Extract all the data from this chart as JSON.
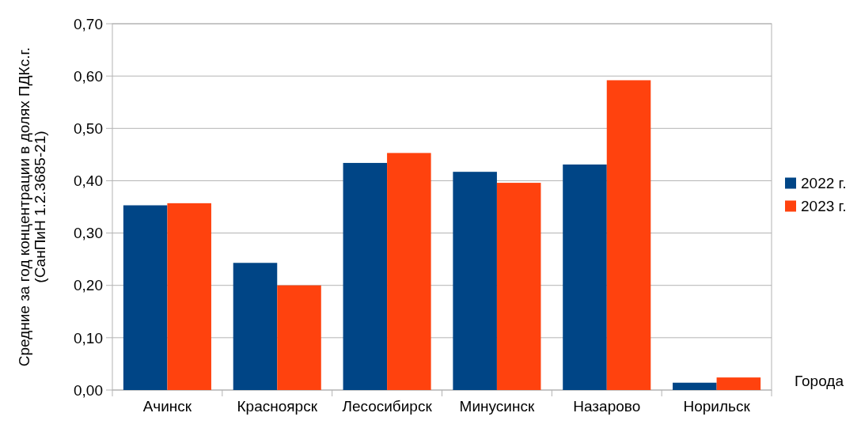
{
  "chart_data": {
    "type": "bar",
    "xlabel": "Города",
    "ylabel": "Средние за год концентрации в долях ПДКс.г.\n(СанПиН 1.2.3685-21)",
    "categories": [
      "Ачинск",
      "Красноярск",
      "Лесосибирск",
      "Минусинск",
      "Назарово",
      "Норильск"
    ],
    "series": [
      {
        "name": "2022 г.",
        "color": "#004586",
        "values": [
          0.353,
          0.243,
          0.434,
          0.417,
          0.431,
          0.014
        ]
      },
      {
        "name": "2023 г.",
        "color": "#ff420e",
        "values": [
          0.357,
          0.2,
          0.453,
          0.396,
          0.592,
          0.024
        ]
      }
    ],
    "ylim": [
      0,
      0.7
    ],
    "yticks": [
      {
        "value": 0,
        "label": "0,00"
      },
      {
        "value": 0.1,
        "label": "0,10"
      },
      {
        "value": 0.2,
        "label": "0,20"
      },
      {
        "value": 0.3,
        "label": "0,30"
      },
      {
        "value": 0.4,
        "label": "0,40"
      },
      {
        "value": 0.5,
        "label": "0,50"
      },
      {
        "value": 0.6,
        "label": "0,60"
      },
      {
        "value": 0.7,
        "label": "0,70"
      }
    ],
    "grid": "y",
    "legend": "right"
  }
}
